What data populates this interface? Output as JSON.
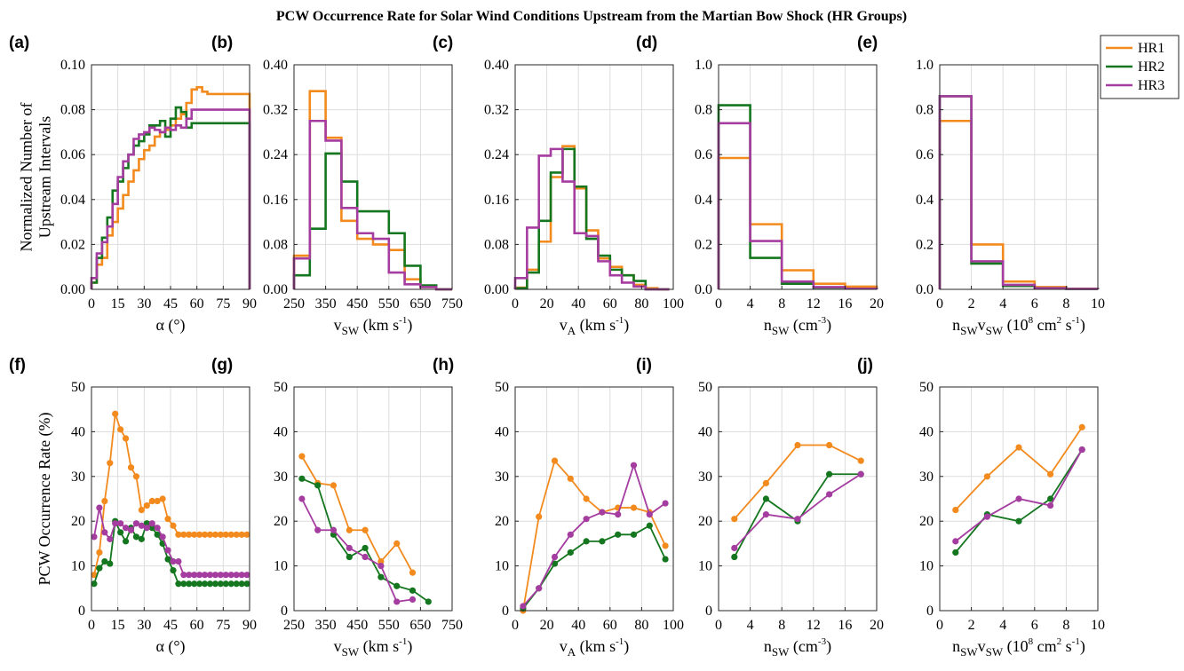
{
  "figure": {
    "title": "PCW Occurrence Rate for Solar Wind Conditions Upstream from the Martian Bow Shock (HR Groups)",
    "colors": {
      "HR1": "#f28a1e",
      "HR2": "#14761e",
      "HR3": "#a53ca0"
    },
    "legend": {
      "entries": [
        "HR1",
        "HR2",
        "HR3"
      ],
      "placement": "top-right of panel (e)"
    }
  },
  "chart_data": [
    {
      "panel": "(a)",
      "type": "histogram (stairs)",
      "xlabel": "α (°)",
      "ylabel": [
        "Normalized Number of",
        "Upstream Intervals"
      ],
      "xlim": [
        0,
        90
      ],
      "ylim": [
        0,
        0.1
      ],
      "xticks": [
        0,
        15,
        30,
        45,
        60,
        75,
        90
      ],
      "yticks": [
        0,
        0.02,
        0.04,
        0.06,
        0.08,
        0.1
      ],
      "ytick_labels": [
        "0.00",
        "0.02",
        "0.04",
        "0.06",
        "0.08",
        "0.10"
      ],
      "bin_edges": [
        0,
        3,
        6,
        9,
        12,
        15,
        18,
        21,
        24,
        27,
        30,
        33,
        36,
        39,
        42,
        45,
        48,
        51,
        54,
        57,
        60,
        63,
        66,
        69,
        72,
        75,
        78,
        81,
        84,
        87,
        90
      ],
      "series": [
        {
          "name": "HR1",
          "values": [
            0.003,
            0.011,
            0.014,
            0.024,
            0.03,
            0.036,
            0.042,
            0.048,
            0.053,
            0.058,
            0.062,
            0.064,
            0.068,
            0.07,
            0.071,
            0.073,
            0.076,
            0.078,
            0.083,
            0.089,
            0.09,
            0.088,
            0.087,
            0.087,
            0.087,
            0.087,
            0.087,
            0.087,
            0.087,
            0.087
          ]
        },
        {
          "name": "HR2",
          "values": [
            0.003,
            0.014,
            0.023,
            0.032,
            0.044,
            0.048,
            0.054,
            0.06,
            0.064,
            0.066,
            0.069,
            0.073,
            0.073,
            0.075,
            0.068,
            0.076,
            0.081,
            0.079,
            0.072,
            0.074,
            0.074,
            0.074,
            0.074,
            0.074,
            0.074,
            0.074,
            0.074,
            0.074,
            0.074,
            0.074
          ]
        },
        {
          "name": "HR3",
          "values": [
            0.005,
            0.016,
            0.021,
            0.028,
            0.038,
            0.05,
            0.057,
            0.06,
            0.067,
            0.069,
            0.07,
            0.072,
            0.071,
            0.07,
            0.072,
            0.071,
            0.073,
            0.072,
            0.076,
            0.08,
            0.08,
            0.08,
            0.08,
            0.08,
            0.08,
            0.08,
            0.08,
            0.08,
            0.08,
            0.08
          ]
        }
      ]
    },
    {
      "panel": "(b)",
      "type": "histogram (stairs)",
      "xlabel": "vSW (km s-1)",
      "xlim": [
        250,
        750
      ],
      "ylim": [
        0,
        0.4
      ],
      "xticks": [
        250,
        350,
        450,
        550,
        650,
        750
      ],
      "yticks": [
        0,
        0.08,
        0.16,
        0.24,
        0.32,
        0.4
      ],
      "ytick_labels": [
        "0.00",
        "0.08",
        "0.16",
        "0.24",
        "0.32",
        "0.40"
      ],
      "bin_edges": [
        250,
        300,
        350,
        400,
        450,
        500,
        550,
        600,
        650,
        700,
        750
      ],
      "series": [
        {
          "name": "HR1",
          "values": [
            0.06,
            0.353,
            0.27,
            0.122,
            0.09,
            0.08,
            0.07,
            0.018,
            0.004,
            0.0
          ]
        },
        {
          "name": "HR2",
          "values": [
            0.025,
            0.108,
            0.242,
            0.192,
            0.139,
            0.139,
            0.1,
            0.042,
            0.007,
            0.0
          ]
        },
        {
          "name": "HR3",
          "values": [
            0.055,
            0.3,
            0.265,
            0.145,
            0.1,
            0.09,
            0.03,
            0.009,
            0.004,
            0.0
          ]
        }
      ]
    },
    {
      "panel": "(c)",
      "type": "histogram (stairs)",
      "xlabel": "vA (km s-1)",
      "xlim": [
        0,
        100
      ],
      "ylim": [
        0,
        0.4
      ],
      "xticks": [
        0,
        20,
        40,
        60,
        80,
        100
      ],
      "yticks": [
        0,
        0.08,
        0.16,
        0.24,
        0.32,
        0.4
      ],
      "ytick_labels": [
        "0.00",
        "0.08",
        "0.16",
        "0.24",
        "0.32",
        "0.40"
      ],
      "bin_edges": [
        0,
        7.5,
        15,
        22.5,
        30,
        37.5,
        45,
        52.5,
        60,
        67.5,
        75,
        82.5,
        90,
        97.5
      ],
      "series": [
        {
          "name": "HR1",
          "values": [
            0.003,
            0.035,
            0.085,
            0.2,
            0.255,
            0.18,
            0.105,
            0.055,
            0.04,
            0.025,
            0.008,
            0.002,
            0.0
          ]
        },
        {
          "name": "HR2",
          "values": [
            0.002,
            0.03,
            0.122,
            0.208,
            0.25,
            0.183,
            0.09,
            0.06,
            0.035,
            0.025,
            0.015,
            0.0,
            0.0
          ]
        },
        {
          "name": "HR3",
          "values": [
            0.02,
            0.11,
            0.238,
            0.25,
            0.192,
            0.1,
            0.095,
            0.05,
            0.025,
            0.012,
            0.005,
            0.0,
            0.0
          ]
        }
      ]
    },
    {
      "panel": "(d)",
      "type": "histogram (stairs)",
      "xlabel": "nSW (cm-3)",
      "xlim": [
        0,
        20
      ],
      "ylim": [
        0,
        1
      ],
      "xticks": [
        0,
        4,
        8,
        12,
        16,
        20
      ],
      "yticks": [
        0,
        0.2,
        0.4,
        0.6,
        0.8,
        1
      ],
      "ytick_labels": [
        "0.0",
        "0.2",
        "0.4",
        "0.6",
        "0.8",
        "1.0"
      ],
      "bin_edges": [
        0,
        4,
        8,
        12,
        16,
        20
      ],
      "series": [
        {
          "name": "HR1",
          "values": [
            0.585,
            0.29,
            0.085,
            0.025,
            0.012
          ]
        },
        {
          "name": "HR2",
          "values": [
            0.82,
            0.14,
            0.025,
            0.008,
            0.003
          ]
        },
        {
          "name": "HR3",
          "values": [
            0.74,
            0.215,
            0.035,
            0.01,
            0.003
          ]
        }
      ]
    },
    {
      "panel": "(e)",
      "type": "histogram (stairs)",
      "xlabel": "nSWvSW (108 cm2 s-1)",
      "xlim": [
        0,
        10
      ],
      "ylim": [
        0,
        1
      ],
      "xticks": [
        0,
        2,
        4,
        6,
        8,
        10
      ],
      "yticks": [
        0,
        0.2,
        0.4,
        0.6,
        0.8,
        1
      ],
      "ytick_labels": [
        "0.0",
        "0.2",
        "0.4",
        "0.6",
        "0.8",
        "1.0"
      ],
      "bin_edges": [
        0,
        2,
        4,
        6,
        8,
        10
      ],
      "series": [
        {
          "name": "HR1",
          "values": [
            0.75,
            0.2,
            0.035,
            0.01,
            0.003
          ]
        },
        {
          "name": "HR2",
          "values": [
            0.86,
            0.115,
            0.015,
            0.005,
            0.002
          ]
        },
        {
          "name": "HR3",
          "values": [
            0.86,
            0.125,
            0.02,
            0.005,
            0.002
          ]
        }
      ]
    },
    {
      "panel": "(f)",
      "type": "line with markers",
      "xlabel": "α (°)",
      "ylabel": [
        "PCW Occurrence Rate (%)"
      ],
      "xlim": [
        0,
        90
      ],
      "ylim": [
        0,
        50
      ],
      "xticks": [
        0,
        15,
        30,
        45,
        60,
        75,
        90
      ],
      "yticks": [
        0,
        10,
        20,
        30,
        40,
        50
      ],
      "x": [
        1.5,
        4.5,
        7.5,
        10.5,
        13.5,
        16.5,
        19.5,
        22.5,
        25.5,
        28.5,
        31.5,
        34.5,
        37.5,
        40.5,
        43.5,
        46.5,
        49.5,
        52.5,
        55.5,
        58.5,
        61.5,
        64.5,
        67.5,
        70.5,
        73.5,
        76.5,
        79.5,
        82.5,
        85.5,
        88.5
      ],
      "series": [
        {
          "name": "HR1",
          "values": [
            8,
            13,
            24.5,
            33,
            44,
            40.5,
            38.5,
            32,
            30,
            22.5,
            23.5,
            24.5,
            24.5,
            25,
            20.5,
            19,
            17,
            17,
            17,
            17,
            17,
            17,
            17,
            17,
            17,
            17,
            17,
            17,
            17,
            17
          ]
        },
        {
          "name": "HR2",
          "values": [
            6,
            9.5,
            11,
            10.5,
            20,
            17.5,
            15.5,
            18.5,
            16.5,
            16,
            19.5,
            18.5,
            17,
            15,
            11.5,
            9,
            6,
            6,
            6,
            6,
            6,
            6,
            6,
            6,
            6,
            6,
            6,
            6,
            6,
            6
          ]
        },
        {
          "name": "HR3",
          "values": [
            16.5,
            23,
            17.5,
            16,
            19.5,
            19.5,
            18.5,
            18,
            19.5,
            19,
            18.5,
            19.5,
            18.5,
            16.5,
            13.5,
            11,
            11,
            8,
            8,
            8,
            8,
            8,
            8,
            8,
            8,
            8,
            8,
            8,
            8,
            8
          ]
        }
      ]
    },
    {
      "panel": "(g)",
      "type": "line with markers",
      "xlabel": "vSW (km s-1)",
      "xlim": [
        250,
        750
      ],
      "ylim": [
        0,
        50
      ],
      "xticks": [
        250,
        350,
        450,
        550,
        650,
        750
      ],
      "yticks": [
        0,
        10,
        20,
        30,
        40,
        50
      ],
      "series": [
        {
          "name": "HR1",
          "x": [
            275,
            325,
            375,
            425,
            475,
            525,
            575,
            625
          ],
          "values": [
            34.5,
            28.5,
            28,
            18,
            18,
            11,
            15,
            8.5
          ]
        },
        {
          "name": "HR2",
          "x": [
            275,
            325,
            375,
            425,
            475,
            525,
            575,
            625,
            675
          ],
          "values": [
            29.5,
            28,
            17,
            12,
            14,
            7.5,
            5.5,
            4.5,
            2
          ]
        },
        {
          "name": "HR3",
          "x": [
            275,
            325,
            375,
            425,
            475,
            525,
            575,
            625
          ],
          "values": [
            25,
            18,
            18,
            14,
            12,
            10,
            2,
            2.5
          ]
        }
      ]
    },
    {
      "panel": "(h)",
      "type": "line with markers",
      "xlabel": "vA (km s-1)",
      "xlim": [
        0,
        100
      ],
      "ylim": [
        0,
        50
      ],
      "xticks": [
        0,
        20,
        40,
        60,
        80,
        100
      ],
      "yticks": [
        0,
        10,
        20,
        30,
        40,
        50
      ],
      "x": [
        5,
        15,
        25,
        35,
        45,
        55,
        65,
        75,
        85,
        95
      ],
      "series": [
        {
          "name": "HR1",
          "values": [
            0,
            21,
            33.5,
            29.5,
            25,
            22,
            23,
            23,
            22,
            14.5
          ]
        },
        {
          "name": "HR2",
          "values": [
            0.5,
            5,
            10.5,
            13,
            15.5,
            15.5,
            17,
            17,
            19,
            11.5
          ]
        },
        {
          "name": "HR3",
          "values": [
            1,
            5,
            12,
            17,
            20.5,
            22,
            21.5,
            32.5,
            21.5,
            24
          ]
        }
      ]
    },
    {
      "panel": "(i)",
      "type": "line with markers",
      "xlabel": "nSW (cm-3)",
      "xlim": [
        0,
        20
      ],
      "ylim": [
        0,
        50
      ],
      "xticks": [
        0,
        4,
        8,
        12,
        16,
        20
      ],
      "yticks": [
        0,
        10,
        20,
        30,
        40,
        50
      ],
      "x": [
        2,
        6,
        10,
        14,
        18
      ],
      "series": [
        {
          "name": "HR1",
          "values": [
            20.5,
            28.5,
            37,
            37,
            33.5
          ]
        },
        {
          "name": "HR2",
          "values": [
            12,
            25,
            20,
            30.5,
            30.5
          ]
        },
        {
          "name": "HR3",
          "values": [
            14,
            21.5,
            20.5,
            26,
            30.5
          ]
        }
      ]
    },
    {
      "panel": "(j)",
      "type": "line with markers",
      "xlabel": "nSWvSW (108 cm2 s-1)",
      "xlim": [
        0,
        10
      ],
      "ylim": [
        0,
        50
      ],
      "xticks": [
        0,
        2,
        4,
        6,
        8,
        10
      ],
      "yticks": [
        0,
        10,
        20,
        30,
        40,
        50
      ],
      "x": [
        1,
        3,
        5,
        7,
        9
      ],
      "series": [
        {
          "name": "HR1",
          "values": [
            22.5,
            30,
            36.5,
            30.5,
            41
          ]
        },
        {
          "name": "HR2",
          "values": [
            13,
            21.5,
            20,
            25,
            36
          ]
        },
        {
          "name": "HR3",
          "values": [
            15.5,
            21,
            25,
            23.5,
            36
          ]
        }
      ]
    }
  ]
}
